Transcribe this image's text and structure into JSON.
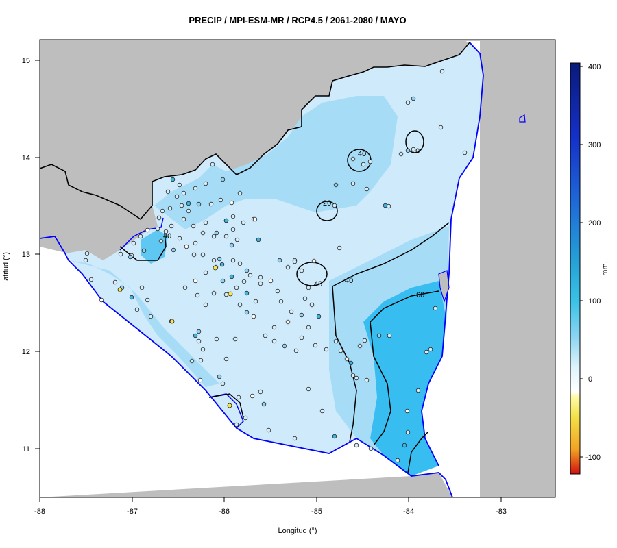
{
  "title": "PRECIP / MPI-ESM-MR / RCP4.5 / 2061-2080 / MAYO",
  "axes": {
    "xlabel": "Longitud (°)",
    "ylabel": "Latitud (°)",
    "xticks": [
      "-88",
      "-87",
      "-86",
      "-85",
      "-84",
      "-83"
    ],
    "yticks": [
      "15",
      "14",
      "13",
      "12",
      "11"
    ]
  },
  "colorbar": {
    "unit": "mm.",
    "ticks": [
      "400",
      "300",
      "200",
      "100",
      "0",
      "-100"
    ],
    "colors": [
      "#0a1a7a",
      "#1530c8",
      "#1f6ad8",
      "#25a0d6",
      "#3bc2e6",
      "#8fd6f2",
      "#dff3fb",
      "#ffffff",
      "#fffbb0",
      "#f2e24a",
      "#f2a224",
      "#e83b14",
      "#d01010"
    ]
  },
  "contour_labels": [
    "20",
    "40",
    "40",
    "40",
    "20",
    "40",
    "60"
  ],
  "map_colors": {
    "background": "#bebebe",
    "sea": "#ffffff",
    "land_light": "#cfeafb",
    "land_mid": "#a7dcf7",
    "land_dark": "#38bdf0",
    "coast": "#0000ff"
  }
}
